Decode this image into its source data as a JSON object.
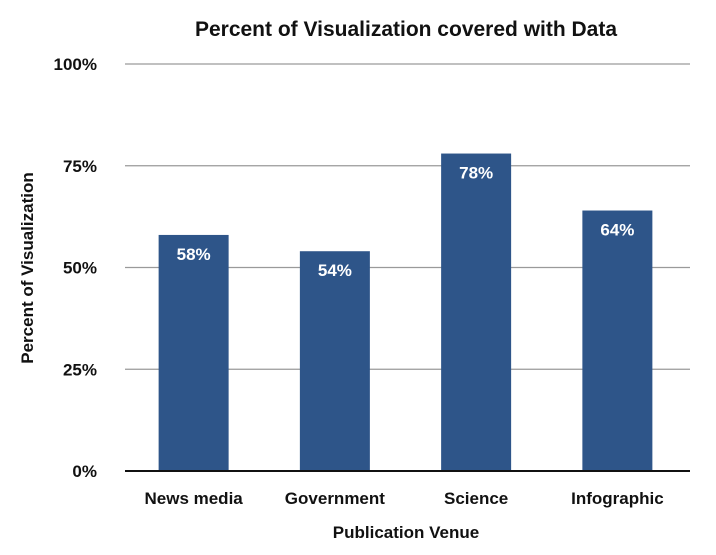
{
  "chart_data": {
    "type": "bar",
    "title": "Percent of Visualization covered with Data",
    "xlabel": "Publication Venue",
    "ylabel": "Percent of Visualization",
    "categories": [
      "News media",
      "Government",
      "Science",
      "Infographic"
    ],
    "values": [
      58,
      54,
      78,
      64
    ],
    "data_labels": [
      "58%",
      "54%",
      "78%",
      "64%"
    ],
    "ylim": [
      0,
      100
    ],
    "yticks": [
      0,
      25,
      50,
      75,
      100
    ],
    "ytick_labels": [
      "0%",
      "25%",
      "50%",
      "75%",
      "100%"
    ],
    "grid": true,
    "legend": "none",
    "bar_color": "#2e5589"
  }
}
